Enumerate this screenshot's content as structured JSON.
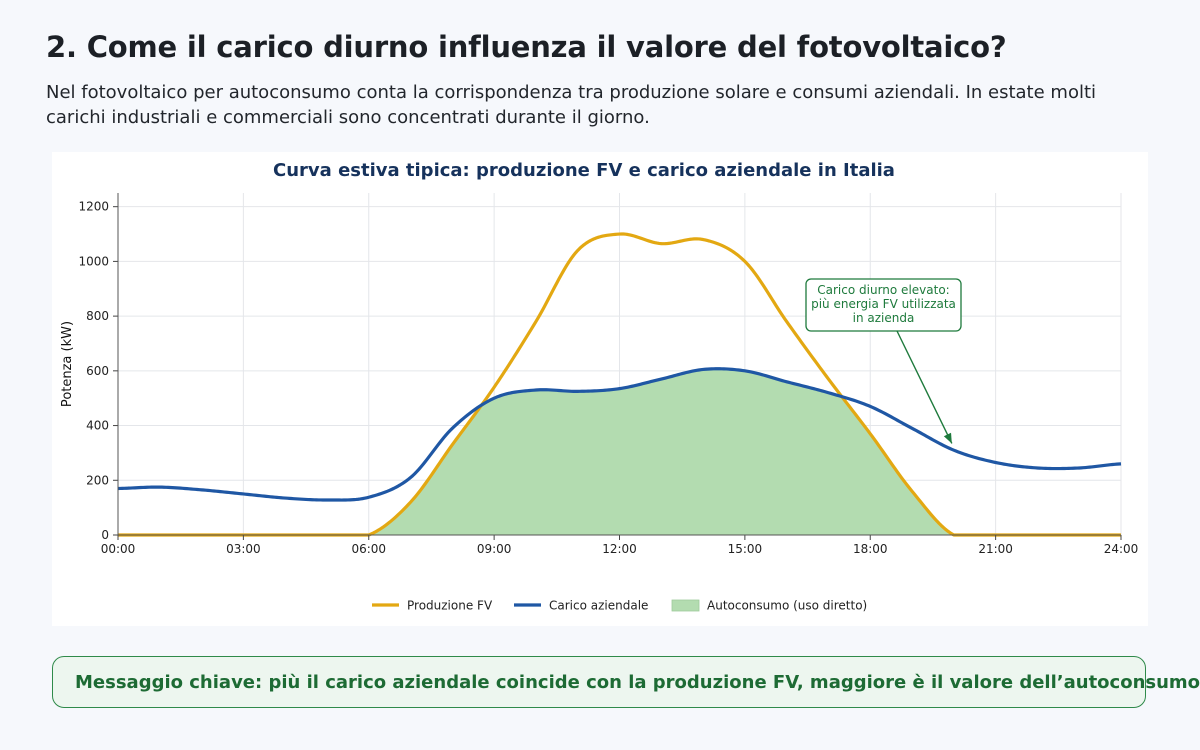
{
  "page": {
    "title": "2. Come il carico diurno influenza il valore del fotovoltaico?",
    "intro": "Nel fotovoltaico per autoconsumo conta la corrispondenza tra produzione solare e consumi aziendali. In estate molti carichi industriali e commerciali sono concentrati durante il giorno."
  },
  "key_message": "Messaggio chiave: più il carico aziendale coincide con la produzione FV, maggiore è il valore dell’autoconsumo.",
  "colors": {
    "pv": "#e3a812",
    "load": "#1f57a4",
    "self_consumption_fill": "#b3dcb0",
    "annotation": "#1e7a3c",
    "title": "#16325c"
  },
  "chart_data": {
    "type": "line",
    "title": "Curva estiva tipica: produzione FV e carico aziendale in Italia",
    "xlabel": "",
    "ylabel": "Potenza (kW)",
    "x_ticks": [
      "00:00",
      "03:00",
      "06:00",
      "09:00",
      "12:00",
      "15:00",
      "18:00",
      "21:00",
      "24:00"
    ],
    "y_ticks": [
      0,
      200,
      400,
      600,
      800,
      1000,
      1200
    ],
    "xlim": [
      0,
      24
    ],
    "ylim": [
      0,
      1250
    ],
    "grid": true,
    "legend_position": "bottom-center",
    "x": [
      0,
      1,
      2,
      3,
      4,
      5,
      6,
      7,
      8,
      9,
      10,
      11,
      12,
      13,
      14,
      15,
      16,
      17,
      18,
      19,
      20,
      21,
      22,
      23,
      24
    ],
    "series": [
      {
        "name": "Produzione FV",
        "values": [
          0,
          0,
          0,
          0,
          0,
          0,
          0,
          120,
          330,
          540,
          780,
          1040,
          1100,
          1065,
          1080,
          1000,
          780,
          570,
          370,
          160,
          0,
          0,
          0,
          0,
          0
        ]
      },
      {
        "name": "Carico aziendale",
        "values": [
          170,
          175,
          165,
          150,
          135,
          128,
          138,
          210,
          390,
          500,
          530,
          525,
          535,
          570,
          605,
          600,
          560,
          520,
          470,
          390,
          310,
          265,
          245,
          245,
          260
        ]
      }
    ],
    "fill": {
      "name": "Autoconsumo (uso diretto)",
      "rule": "min(Produzione FV, Carico aziendale)"
    },
    "annotation": {
      "lines": [
        "Carico diurno elevato:",
        "più energia FV utilizzata",
        "in azienda"
      ],
      "target_x": 20,
      "target_y": 320
    }
  }
}
